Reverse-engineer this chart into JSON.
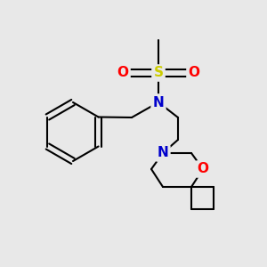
{
  "bg_color": "#e8e8e8",
  "atom_colors": {
    "C": "#000000",
    "N": "#0000cc",
    "O": "#ff0000",
    "S": "#cccc00"
  },
  "bond_color": "#000000",
  "bond_width": 1.5,
  "font_size_atom": 11
}
